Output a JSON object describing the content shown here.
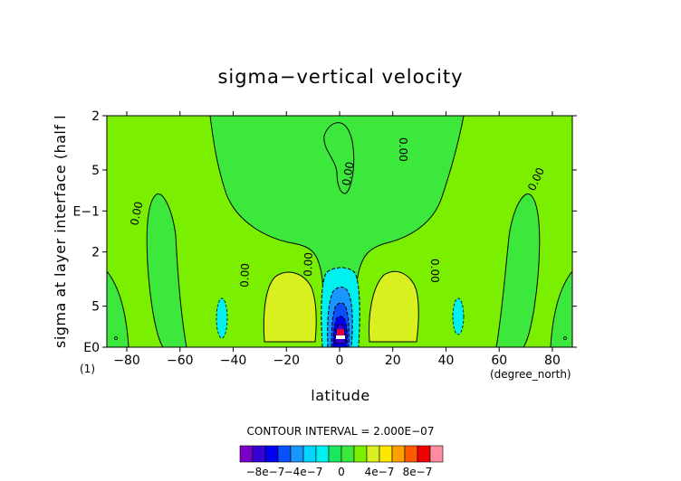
{
  "chart_data": {
    "type": "heatmap",
    "title": "sigma−vertical velocity",
    "xlabel": "latitude",
    "x_unit": "(degree_north)",
    "ylabel": "sigma at layer interface (half l",
    "y_scale_factor": "(1)",
    "x_ticks": [
      "−80",
      "−60",
      "−40",
      "−20",
      "0",
      "20",
      "40",
      "60",
      "80"
    ],
    "x_tick_values": [
      -80,
      -60,
      -40,
      -20,
      0,
      20,
      40,
      60,
      80
    ],
    "y_ticks": [
      "2",
      "5",
      "E−1",
      "2",
      "5",
      "E0"
    ],
    "y_tick_values": [
      0.02,
      0.05,
      0.1,
      0.2,
      0.5,
      1.0
    ],
    "xlim": [
      -87.5,
      87.5
    ],
    "ylim": [
      1.0,
      0.02
    ],
    "y_scale": "log",
    "contour_interval_text": "CONTOUR INTERVAL = 2.000E−07",
    "contour_label": "0.00",
    "colorbar_labels": [
      "−8e−7",
      "−4e−7",
      "0",
      "4e−7",
      "8e−7"
    ],
    "colorbar_colors": [
      "#7a00c8",
      "#3700d6",
      "#0000f0",
      "#0a50ff",
      "#1a96ff",
      "#00d4ff",
      "#00f0f0",
      "#18e860",
      "#3ce83c",
      "#7af000",
      "#d8f020",
      "#ffe800",
      "#ffa000",
      "#ff5a00",
      "#f00000",
      "#ff8ca0"
    ],
    "level_colors": {
      "neutral": "#3ce83c",
      "weak_positive": "#7af000",
      "moderate_positive": "#d8f020",
      "weak_negative": "#18e860",
      "cyan": "#00f0f0",
      "light_blue": "#1a96ff",
      "blue": "#0a50ff",
      "dark_blue": "#0000f0",
      "navy": "#3700d6",
      "purple": "#7a00c8"
    },
    "features": [
      {
        "kind": "updraft_core",
        "lat": 0,
        "sigma": 0.93,
        "min_value": "< −8e−7"
      },
      {
        "kind": "subsidence",
        "lat": -20,
        "sigma": 0.5,
        "value": "4e−7 to 6e−7"
      },
      {
        "kind": "subsidence",
        "lat": 20,
        "sigma": 0.5,
        "value": "4e−7 to 6e−7"
      },
      {
        "kind": "weak_ascent",
        "lat": -46,
        "sigma": 0.55
      },
      {
        "kind": "weak_ascent",
        "lat": 46,
        "sigma": 0.55
      }
    ]
  }
}
